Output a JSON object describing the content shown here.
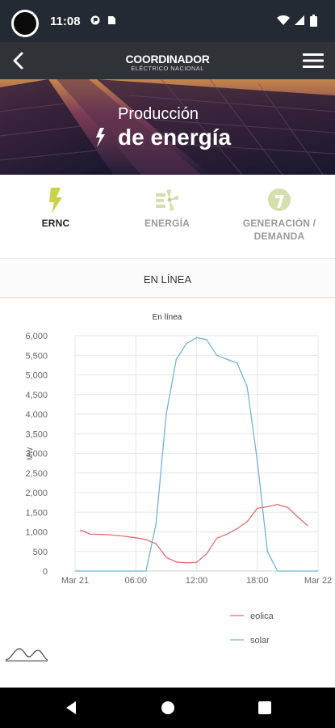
{
  "status_bar": {
    "time": "11:08"
  },
  "app_bar": {
    "logo_title": "COORDINADOR",
    "logo_subtitle": "ELÉCTRICO NACIONAL"
  },
  "hero": {
    "title_line1": "Producción",
    "title_line2": "de energía"
  },
  "tabs": [
    {
      "label": "ERNC",
      "icon": "bolt-icon",
      "active": true
    },
    {
      "label": "ENERGÍA",
      "icon": "wind-turbine-icon",
      "active": false
    },
    {
      "label": "GENERACIÓN / DEMANDA",
      "icon": "gauge-icon",
      "active": false
    }
  ],
  "subtab": {
    "label": "EN LÍNEA"
  },
  "chart_data": {
    "type": "line",
    "title": "En línea",
    "ylabel": "MW",
    "xlabel": "",
    "ylim": [
      0,
      6000
    ],
    "yticks": [
      "0",
      "500",
      "1,000",
      "1,500",
      "2,000",
      "2,500",
      "3,000",
      "3,500",
      "4,000",
      "4,500",
      "5,000",
      "5,500",
      "6,000"
    ],
    "xlim": [
      0,
      24
    ],
    "xticks": [
      {
        "h": 0,
        "label": "Mar 21"
      },
      {
        "h": 6,
        "label": "06:00"
      },
      {
        "h": 12,
        "label": "12:00"
      },
      {
        "h": 18,
        "label": "18:00"
      },
      {
        "h": 24,
        "label": "Mar 22"
      }
    ],
    "grid": true,
    "legend_position": "bottom-right",
    "series": [
      {
        "name": "eolica",
        "color": "#e36b6b",
        "points": [
          [
            0.5,
            1050
          ],
          [
            1.5,
            940
          ],
          [
            3,
            930
          ],
          [
            4.5,
            900
          ],
          [
            6,
            850
          ],
          [
            7,
            800
          ],
          [
            8,
            700
          ],
          [
            9,
            350
          ],
          [
            10,
            230
          ],
          [
            11,
            210
          ],
          [
            12,
            220
          ],
          [
            13,
            440
          ],
          [
            14,
            840
          ],
          [
            15,
            940
          ],
          [
            16,
            1080
          ],
          [
            17,
            1260
          ],
          [
            18,
            1600
          ],
          [
            19,
            1640
          ],
          [
            20,
            1700
          ],
          [
            21,
            1620
          ],
          [
            22,
            1380
          ],
          [
            23,
            1150
          ]
        ]
      },
      {
        "name": "solar",
        "color": "#6fb3dd",
        "points": [
          [
            0,
            0
          ],
          [
            6,
            0
          ],
          [
            7,
            0
          ],
          [
            8,
            1200
          ],
          [
            9,
            4000
          ],
          [
            10,
            5400
          ],
          [
            11,
            5800
          ],
          [
            12,
            5950
          ],
          [
            13,
            5900
          ],
          [
            14,
            5500
          ],
          [
            15,
            5400
          ],
          [
            16,
            5300
          ],
          [
            17,
            4700
          ],
          [
            18,
            2800
          ],
          [
            19,
            500
          ],
          [
            20,
            0
          ],
          [
            24,
            0
          ]
        ]
      }
    ]
  }
}
